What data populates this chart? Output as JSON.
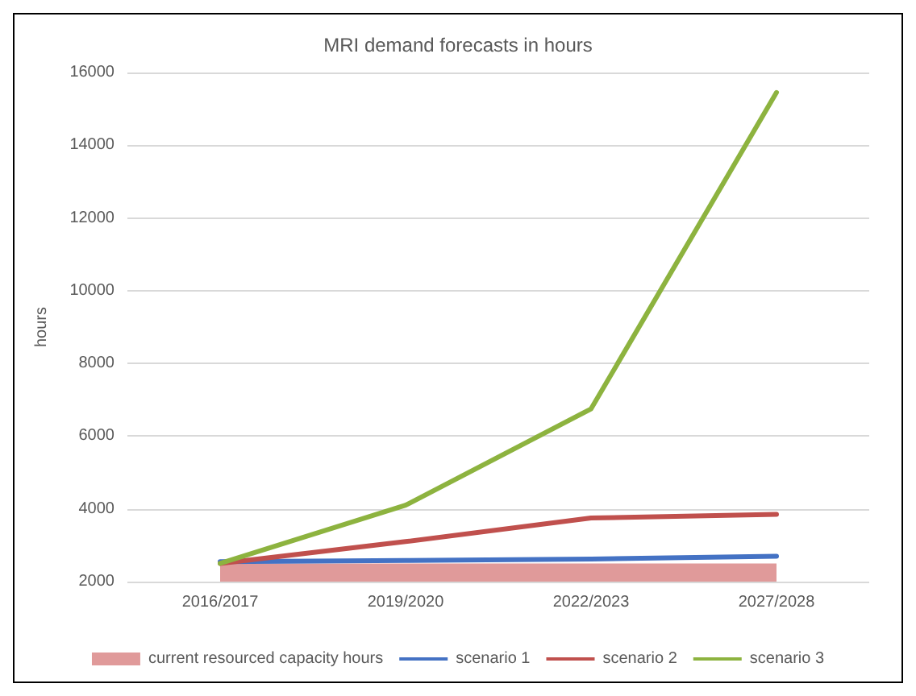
{
  "chart_data": {
    "type": "line",
    "title": "MRI demand forecasts in hours",
    "ylabel": "hours",
    "categories": [
      "2016/2017",
      "2019/2020",
      "2022/2023",
      "2027/2028"
    ],
    "series": [
      {
        "name": "current resourced capacity hours",
        "type": "area",
        "color": "#e09a9a",
        "values": [
          2500,
          2500,
          2500,
          2500
        ]
      },
      {
        "name": "scenario 1",
        "color": "#4472c4",
        "values": [
          2550,
          2580,
          2620,
          2700
        ]
      },
      {
        "name": "scenario 2",
        "color": "#c0504d",
        "values": [
          2500,
          3100,
          3750,
          3850
        ]
      },
      {
        "name": "scenario 3",
        "color": "#8db33f",
        "values": [
          2500,
          4100,
          6750,
          15450
        ]
      }
    ],
    "ylim": [
      2000,
      16000
    ],
    "yticks": [
      2000,
      4000,
      6000,
      8000,
      10000,
      12000,
      14000,
      16000
    ],
    "grid": "y",
    "legend": "bottom",
    "marker": "none",
    "line_style": "solid"
  }
}
